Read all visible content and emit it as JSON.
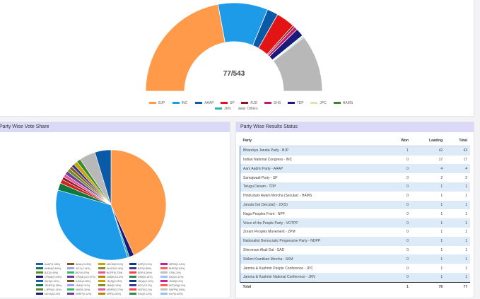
{
  "seat_chart": {
    "center_label": "77/543",
    "segments": [
      {
        "name": "BJP",
        "color": "#ff9a4a",
        "value": 240
      },
      {
        "name": "INC",
        "color": "#1d9be8",
        "value": 99
      },
      {
        "name": "AAAP",
        "color": "#0b5aa8",
        "value": 22
      },
      {
        "name": "SP",
        "color": "#e31414",
        "value": 37
      },
      {
        "name": "RJD",
        "color": "#8b1a1a",
        "value": 4
      },
      {
        "name": "SHS",
        "color": "#c71a6b",
        "value": 7
      },
      {
        "name": "TDP",
        "color": "#1a1a7a",
        "value": 16
      },
      {
        "name": "JPC",
        "color": "#d7e8a8",
        "value": 2
      },
      {
        "name": "HAMS",
        "color": "#3a8a2a",
        "value": 1
      },
      {
        "name": "JKN",
        "color": "#29b3b3",
        "value": 2
      },
      {
        "name": "Others",
        "color": "#b8b8b8",
        "value": 113
      }
    ],
    "legend": [
      "BJP",
      "INC",
      "AAAP",
      "SP",
      "RJD",
      "SHS",
      "TDP",
      "JPC",
      "HAMS",
      "JKN",
      "Others"
    ]
  },
  "vote_share": {
    "title": "Party Wise Vote Share",
    "slices": [
      {
        "color": "#ff9a4a",
        "value": 36.6
      },
      {
        "color": "#1a1a7a",
        "value": 1.2
      },
      {
        "color": "#29b3b3",
        "value": 0.5
      },
      {
        "color": "#1d9be8",
        "value": 29.0
      },
      {
        "color": "#0b7a3a",
        "value": 1.8
      },
      {
        "color": "#d62020",
        "value": 1.0
      },
      {
        "color": "#8b1a1a",
        "value": 0.7
      },
      {
        "color": "#e35aa0",
        "value": 0.8
      },
      {
        "color": "#6a3d9a",
        "value": 0.9
      },
      {
        "color": "#6b8e23",
        "value": 0.8
      },
      {
        "color": "#8b5a2b",
        "value": 0.8
      },
      {
        "color": "#2e2e8a",
        "value": 0.7
      },
      {
        "color": "#c9a400",
        "value": 1.0
      },
      {
        "color": "#3a8a2a",
        "value": 1.0
      },
      {
        "color": "#b8b8b8",
        "value": 4.0
      },
      {
        "color": "#0b5aa8",
        "value": 4.0
      }
    ],
    "legend_rows": [
      [
        "AAAP(1.38%)",
        "ADAL(0.03%)",
        "ADHM(0.01%)",
        "ASP(0.01%)",
        "MPBS(1.34%)"
      ],
      [
        "AIMIM(0.69%)",
        "AITC(4.14%)",
        "AIUDF(0.15%)",
        "BJP(0.89%)",
        "BHRS(0.63%)"
      ],
      [
        "BJD(0.40%)",
        "BLP(0.03%)",
        "BOPF(0.23%)",
        "BSP(1.58%)",
        "CPI(0.2%)"
      ],
      [
        "CPI(M)(0.03%)",
        "CPI(ML)L(0.07%)",
        "DMDK(0.13%)",
        "DMK(0.15%)",
        "INC(20.11%)"
      ],
      [
        "INLD(0.10%)",
        "IUML(0.16%)",
        "JD(S)(0.23%)",
        "JD(U)(0.12%)",
        "JKNS(0.0%)"
      ],
      [
        "JKNPP(0.28%)",
        "JMM(0.11%)",
        "JMM(0.19%)",
        "KEC(0.17%)",
        "KEC(M)(0.0%)"
      ],
      [
        "LJPRV(0.13%)",
        "MNF(0.34%)",
        "MDPS(0.27%)",
        "NCP(0.11%)",
        "NDPP(0.09%)"
      ],
      [
        "NOTA(0.14%)",
        "NPEP(0.12%)",
        "NPF(0.26%)",
        "RJD(0.12%)",
        "RLP(0.05%)"
      ]
    ],
    "legend_colors": [
      "#1d5fa8",
      "#7b5a2a",
      "#c9a400",
      "#0b3a8a",
      "#d02090",
      "#0b7a5a",
      "#a0a0ff",
      "#8a8a2a",
      "#3a3a9a",
      "#ff6060",
      "#5a8a2a",
      "#30c060",
      "#e35aa0",
      "#ff4040",
      "#c0c0c0",
      "#1a1a7a",
      "#6a3d9a",
      "#b8860b",
      "#2e8b57",
      "#9ac0ff"
    ]
  },
  "results": {
    "title": "Party Wise Results Status",
    "columns": [
      "Party",
      "Won",
      "Leading",
      "Total"
    ],
    "rows": [
      [
        "Bharatiya Janata Party - BJP",
        "1",
        "42",
        "43"
      ],
      [
        "Indian National Congress - INC",
        "0",
        "17",
        "17"
      ],
      [
        "Aam Aadmi Party - AAAP",
        "0",
        "4",
        "4"
      ],
      [
        "Samajwadi Party - SP",
        "0",
        "2",
        "2"
      ],
      [
        "Telugu Desam - TDP",
        "0",
        "1",
        "1"
      ],
      [
        "Hindustani Awam Morcha (Secular) - HAMS",
        "0",
        "1",
        "1"
      ],
      [
        "Janata Dal (Secular) - JD(S)",
        "0",
        "1",
        "1"
      ],
      [
        "Naga Peoples Front - NPF",
        "0",
        "1",
        "1"
      ],
      [
        "Voice of the People Party - VOTPP",
        "0",
        "1",
        "1"
      ],
      [
        "Zoram Peoples Movement - ZPM",
        "0",
        "1",
        "1"
      ],
      [
        "Nationalist Democratic Progressive Party - NDPP",
        "0",
        "1",
        "1"
      ],
      [
        "Shiromani Akali Dal - SAD",
        "0",
        "1",
        "1"
      ],
      [
        "Sikkim Krantikari Morcha - SKM",
        "0",
        "1",
        "1"
      ],
      [
        "Jammu & Kashmir People Conference - JPC",
        "0",
        "1",
        "1"
      ],
      [
        "Jammu & Kashmir National Conference - JKN",
        "0",
        "1",
        "1"
      ]
    ],
    "total": [
      "Total",
      "1",
      "76",
      "77"
    ]
  }
}
